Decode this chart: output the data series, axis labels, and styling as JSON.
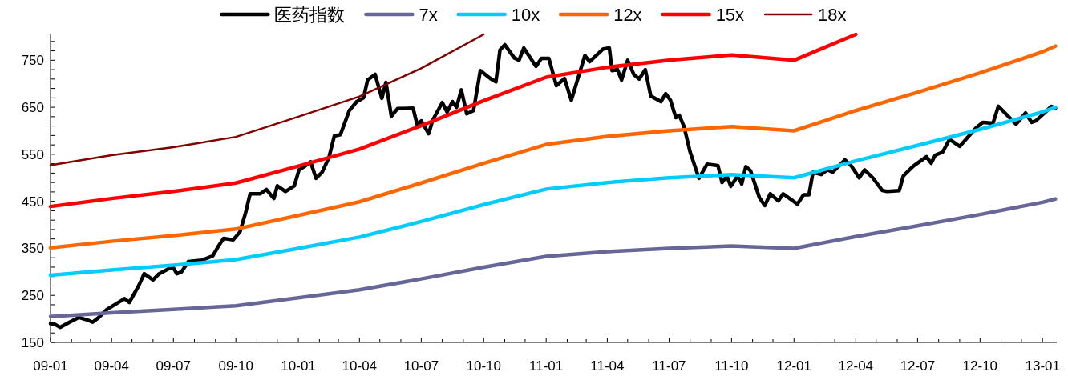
{
  "chart_data": {
    "type": "line",
    "legend": "top",
    "grid": false,
    "line_style": "solid",
    "xlim": [
      "2009-01-01",
      "2013-01-22"
    ],
    "ylim": [
      150,
      805
    ],
    "xticks": [
      {
        "value": "2009-01-01",
        "label": "09-01"
      },
      {
        "value": "2009-02-01",
        "label": null
      },
      {
        "value": "2009-03-01",
        "label": null
      },
      {
        "value": "2009-04-01",
        "label": "09-04"
      },
      {
        "value": "2009-05-01",
        "label": null
      },
      {
        "value": "2009-06-01",
        "label": null
      },
      {
        "value": "2009-07-01",
        "label": "09-07"
      },
      {
        "value": "2009-08-01",
        "label": null
      },
      {
        "value": "2009-09-01",
        "label": null
      },
      {
        "value": "2009-10-01",
        "label": "09-10"
      },
      {
        "value": "2009-11-01",
        "label": null
      },
      {
        "value": "2009-12-01",
        "label": null
      },
      {
        "value": "2010-01-01",
        "label": "10-01"
      },
      {
        "value": "2010-02-01",
        "label": null
      },
      {
        "value": "2010-03-01",
        "label": null
      },
      {
        "value": "2010-04-01",
        "label": "10-04"
      },
      {
        "value": "2010-05-01",
        "label": null
      },
      {
        "value": "2010-06-01",
        "label": null
      },
      {
        "value": "2010-07-01",
        "label": "10-07"
      },
      {
        "value": "2010-08-01",
        "label": null
      },
      {
        "value": "2010-09-01",
        "label": null
      },
      {
        "value": "2010-10-01",
        "label": "10-10"
      },
      {
        "value": "2010-11-01",
        "label": null
      },
      {
        "value": "2010-12-01",
        "label": null
      },
      {
        "value": "2011-01-01",
        "label": "11-01"
      },
      {
        "value": "2011-02-01",
        "label": null
      },
      {
        "value": "2011-03-01",
        "label": null
      },
      {
        "value": "2011-04-01",
        "label": "11-04"
      },
      {
        "value": "2011-05-01",
        "label": null
      },
      {
        "value": "2011-06-01",
        "label": null
      },
      {
        "value": "2011-07-01",
        "label": "11-07"
      },
      {
        "value": "2011-08-01",
        "label": null
      },
      {
        "value": "2011-09-01",
        "label": null
      },
      {
        "value": "2011-10-01",
        "label": "11-10"
      },
      {
        "value": "2011-11-01",
        "label": null
      },
      {
        "value": "2011-12-01",
        "label": null
      },
      {
        "value": "2012-01-01",
        "label": "12-01"
      },
      {
        "value": "2012-02-01",
        "label": null
      },
      {
        "value": "2012-03-01",
        "label": null
      },
      {
        "value": "2012-04-01",
        "label": "12-04"
      },
      {
        "value": "2012-05-01",
        "label": null
      },
      {
        "value": "2012-06-01",
        "label": null
      },
      {
        "value": "2012-07-01",
        "label": "12-07"
      },
      {
        "value": "2012-08-01",
        "label": null
      },
      {
        "value": "2012-09-01",
        "label": null
      },
      {
        "value": "2012-10-01",
        "label": "12-10"
      },
      {
        "value": "2012-11-01",
        "label": null
      },
      {
        "value": "2012-12-01",
        "label": null
      },
      {
        "value": "2013-01-01",
        "label": "13-01"
      }
    ],
    "yticks": [
      150,
      {
        "value": 170,
        "label": null
      },
      {
        "value": 190,
        "label": null
      },
      {
        "value": 210,
        "label": null
      },
      {
        "value": 230,
        "label": null
      },
      250,
      {
        "value": 270,
        "label": null
      },
      {
        "value": 290,
        "label": null
      },
      {
        "value": 310,
        "label": null
      },
      {
        "value": 330,
        "label": null
      },
      350,
      {
        "value": 370,
        "label": null
      },
      {
        "value": 390,
        "label": null
      },
      {
        "value": 410,
        "label": null
      },
      {
        "value": 430,
        "label": null
      },
      450,
      {
        "value": 470,
        "label": null
      },
      {
        "value": 490,
        "label": null
      },
      {
        "value": 510,
        "label": null
      },
      {
        "value": 530,
        "label": null
      },
      550,
      {
        "value": 570,
        "label": null
      },
      {
        "value": 590,
        "label": null
      },
      {
        "value": 610,
        "label": null
      },
      {
        "value": 630,
        "label": null
      },
      650,
      {
        "value": 670,
        "label": null
      },
      {
        "value": 690,
        "label": null
      },
      {
        "value": 710,
        "label": null
      },
      {
        "value": 730,
        "label": null
      },
      750,
      {
        "value": 770,
        "label": null
      },
      {
        "value": 790,
        "label": null
      }
    ],
    "x": [
      "2009-01-01",
      "2009-04-01",
      "2009-07-01",
      "2009-10-01",
      "2010-01-01",
      "2010-04-01",
      "2010-07-01",
      "2010-10-01",
      "2011-01-01",
      "2011-04-01",
      "2011-07-01",
      "2011-10-01",
      "2012-01-01",
      "2012-04-01",
      "2012-07-01",
      "2012-10-01",
      "2013-01-01",
      "2013-01-20"
    ],
    "series": [
      {
        "name": "医药指数",
        "color": "#000000",
        "x": [
          "2009-01-01",
          "2009-01-07",
          "2009-01-15",
          "2009-01-29",
          "2009-02-12",
          "2009-02-24",
          "2009-03-04",
          "2009-03-13",
          "2009-03-25",
          "2009-04-20",
          "2009-04-27",
          "2009-05-11",
          "2009-05-19",
          "2009-06-01",
          "2009-06-10",
          "2009-06-30",
          "2009-07-06",
          "2009-07-13",
          "2009-07-23",
          "2009-08-12",
          "2009-08-28",
          "2009-09-05",
          "2009-09-13",
          "2009-09-27",
          "2009-10-07",
          "2009-10-15",
          "2009-10-22",
          "2009-11-06",
          "2009-11-15",
          "2009-11-26",
          "2009-12-01",
          "2009-12-13",
          "2009-12-26",
          "2010-01-02",
          "2010-01-10",
          "2010-01-19",
          "2010-01-27",
          "2010-02-05",
          "2010-02-15",
          "2010-02-23",
          "2010-03-04",
          "2010-03-17",
          "2010-03-28",
          "2010-04-07",
          "2010-04-13",
          "2010-04-24",
          "2010-05-04",
          "2010-05-10",
          "2010-05-18",
          "2010-05-27",
          "2010-06-19",
          "2010-06-25",
          "2010-07-01",
          "2010-07-12",
          "2010-07-18",
          "2010-08-01",
          "2010-08-08",
          "2010-08-16",
          "2010-08-22",
          "2010-08-29",
          "2010-09-06",
          "2010-09-16",
          "2010-09-26",
          "2010-10-11",
          "2010-10-19",
          "2010-10-25",
          "2010-11-01",
          "2010-11-15",
          "2010-11-22",
          "2010-11-29",
          "2010-12-17",
          "2010-12-25",
          "2011-01-05",
          "2011-01-16",
          "2011-01-28",
          "2011-02-07",
          "2011-02-27",
          "2011-03-06",
          "2011-03-26",
          "2011-04-04",
          "2011-04-08",
          "2011-04-16",
          "2011-04-22",
          "2011-05-01",
          "2011-05-10",
          "2011-05-18",
          "2011-05-27",
          "2011-06-04",
          "2011-06-19",
          "2011-06-26",
          "2011-07-03",
          "2011-07-11",
          "2011-07-16",
          "2011-07-23",
          "2011-08-01",
          "2011-08-14",
          "2011-08-26",
          "2011-09-11",
          "2011-09-17",
          "2011-09-24",
          "2011-09-30",
          "2011-10-10",
          "2011-10-16",
          "2011-10-22",
          "2011-10-29",
          "2011-11-11",
          "2011-11-19",
          "2011-11-27",
          "2011-12-09",
          "2011-12-16",
          "2012-01-06",
          "2012-01-15",
          "2012-01-23",
          "2012-01-29",
          "2012-02-10",
          "2012-02-19",
          "2012-02-27",
          "2012-03-16",
          "2012-03-25",
          "2012-04-06",
          "2012-04-14",
          "2012-04-26",
          "2012-05-10",
          "2012-05-17",
          "2012-06-04",
          "2012-06-10",
          "2012-06-24",
          "2012-07-14",
          "2012-07-21",
          "2012-07-27",
          "2012-08-07",
          "2012-08-17",
          "2012-09-01",
          "2012-09-25",
          "2012-10-05",
          "2012-10-20",
          "2012-10-28",
          "2012-11-23",
          "2012-12-07",
          "2012-12-16",
          "2012-12-22",
          "2013-01-04",
          "2013-01-14",
          "2013-01-20"
        ],
        "values": [
          190,
          189,
          182,
          193,
          203,
          198,
          193,
          203,
          220,
          243,
          235,
          271,
          296,
          283,
          296,
          311,
          296,
          300,
          322,
          325,
          334,
          354,
          371,
          368,
          385,
          424,
          466,
          466,
          475,
          456,
          483,
          471,
          483,
          517,
          524,
          534,
          499,
          512,
          543,
          589,
          592,
          643,
          662,
          670,
          708,
          720,
          669,
          703,
          631,
          647,
          648,
          613,
          621,
          594,
          623,
          660,
          640,
          662,
          650,
          687,
          636,
          643,
          728,
          711,
          704,
          772,
          783,
          755,
          750,
          776,
          737,
          754,
          754,
          696,
          711,
          665,
          760,
          747,
          774,
          776,
          728,
          730,
          708,
          750,
          720,
          710,
          730,
          674,
          662,
          679,
          665,
          628,
          633,
          609,
          555,
          499,
          529,
          526,
          490,
          504,
          482,
          504,
          487,
          524,
          515,
          458,
          441,
          466,
          451,
          466,
          444,
          464,
          464,
          512,
          507,
          517,
          512,
          538,
          526,
          500,
          517,
          500,
          473,
          471,
          473,
          504,
          524,
          545,
          531,
          548,
          555,
          582,
          567,
          606,
          618,
          616,
          652,
          614,
          638,
          618,
          621,
          638,
          652,
          648
        ]
      },
      {
        "name": "7x",
        "color": "#666699",
        "values": [
          205,
          213,
          220,
          228,
          245,
          262,
          285,
          310,
          333,
          343,
          350,
          355,
          350,
          375,
          398,
          422,
          448,
          455
        ]
      },
      {
        "name": "10x",
        "color": "#00ccff",
        "values": [
          293,
          304,
          314,
          326,
          350,
          374,
          407,
          443,
          476,
          490,
          500,
          507,
          500,
          536,
          569,
          603,
          640,
          650
        ]
      },
      {
        "name": "12x",
        "color": "#ff6600",
        "values": [
          351,
          365,
          377,
          391,
          420,
          449,
          489,
          531,
          571,
          588,
          600,
          609,
          600,
          643,
          682,
          723,
          768,
          780
        ]
      },
      {
        "name": "15x",
        "color": "#ff0000",
        "values": [
          439,
          456,
          471,
          489,
          525,
          561,
          611,
          664,
          714,
          735,
          750,
          761,
          750,
          805,
          null,
          null,
          null,
          null
        ]
      },
      {
        "name": "18x",
        "color": "#800000",
        "values": [
          527,
          548,
          565,
          587,
          630,
          673,
          733,
          805,
          null,
          null,
          null,
          null,
          null,
          null,
          null,
          null,
          null,
          null
        ]
      }
    ]
  }
}
